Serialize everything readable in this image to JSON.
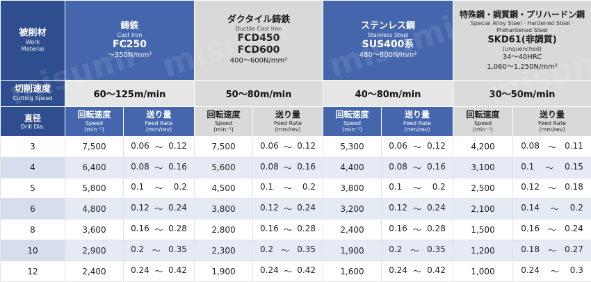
{
  "header": {
    "material_label": {
      "jp": "被削材",
      "en1": "Work",
      "en2": "Material"
    },
    "materials": [
      {
        "jp": "鋳鉄",
        "en": "Cast Iron",
        "grade1": "FC250",
        "grade2": "",
        "range": "～350N/mm²",
        "extra": "",
        "style": "blue"
      },
      {
        "jp": "ダクタイル鋳鉄",
        "en": "Ductile Cast Iron",
        "grade1": "FCD450",
        "grade2": "FCD600",
        "range": "400～600N/mm²",
        "extra": "",
        "style": "grey"
      },
      {
        "jp": "ステンレス鋼",
        "en": "Stainless Steel",
        "grade1": "SUS400系",
        "grade2": "",
        "range": "480～800N/mm²",
        "extra": "",
        "style": "blue"
      },
      {
        "jp": "特殊鋼・調質鋼・プリハードン鋼",
        "en": "Special Alloy Steel · Hardened Steel ·",
        "en2": "Prehardened Steel",
        "grade1": "SKD61(非調質)",
        "grade2": "(unquenched)",
        "range": "34～40HRC",
        "extra": "1,060～1,250N/mm²",
        "style": "grey"
      }
    ]
  },
  "cutting_speed": {
    "label_jp": "切削速度",
    "label_en": "Cutting Speed",
    "values": [
      "60～125m/min",
      "50～80m/min",
      "40～80m/min",
      "30～50m/min"
    ]
  },
  "columns": {
    "dia_jp": "直径",
    "dia_en": "Drill Dia.",
    "speed_jp": "回転速度",
    "speed_en": "Speed",
    "speed_unit": "(min⁻¹)",
    "feed_jp": "送り量",
    "feed_en": "Feed Rate",
    "feed_unit": "(mm/rev)"
  },
  "rows": [
    {
      "dia": "3",
      "cells": [
        [
          "7,500",
          "0.06",
          "0.12"
        ],
        [
          "7,500",
          "0.06",
          "0.12"
        ],
        [
          "5,300",
          "0.06",
          "0.12"
        ],
        [
          "4,200",
          "0.08",
          "0.11"
        ]
      ]
    },
    {
      "dia": "4",
      "cells": [
        [
          "6,400",
          "0.08",
          "0.16"
        ],
        [
          "5,600",
          "0.08",
          "0.16"
        ],
        [
          "4,400",
          "0.08",
          "0.16"
        ],
        [
          "3,100",
          "0.1",
          "0.15"
        ]
      ]
    },
    {
      "dia": "5",
      "cells": [
        [
          "5,800",
          "0.1",
          "0.2"
        ],
        [
          "4,500",
          "0.1",
          "0.2"
        ],
        [
          "3,800",
          "0.1",
          "0.2"
        ],
        [
          "2,500",
          "0.12",
          "0.18"
        ]
      ]
    },
    {
      "dia": "6",
      "cells": [
        [
          "4,800",
          "0.12",
          "0.24"
        ],
        [
          "3,800",
          "0.12",
          "0.24"
        ],
        [
          "3,200",
          "0.12",
          "0.24"
        ],
        [
          "2,100",
          "0.14",
          "0.2"
        ]
      ]
    },
    {
      "dia": "8",
      "cells": [
        [
          "3,600",
          "0.16",
          "0.28"
        ],
        [
          "2,800",
          "0.16",
          "0.28"
        ],
        [
          "2,400",
          "0.16",
          "0.28"
        ],
        [
          "1,500",
          "0.16",
          "0.24"
        ]
      ]
    },
    {
      "dia": "10",
      "cells": [
        [
          "2,900",
          "0.2",
          "0.35"
        ],
        [
          "2,300",
          "0.2",
          "0.35"
        ],
        [
          "1,900",
          "0.2",
          "0.35"
        ],
        [
          "1,200",
          "0.18",
          "0.27"
        ]
      ]
    },
    {
      "dia": "12",
      "cells": [
        [
          "2,400",
          "0.24",
          "0.42"
        ],
        [
          "1,900",
          "0.24",
          "0.42"
        ],
        [
          "1,600",
          "0.24",
          "0.42"
        ],
        [
          "1,000",
          "0.24",
          "0.3"
        ]
      ]
    }
  ],
  "tilde": "～",
  "watermark": "misumi"
}
